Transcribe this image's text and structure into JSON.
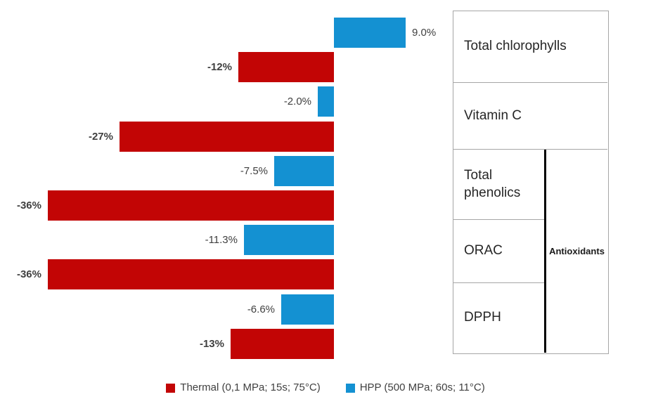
{
  "chart_data": {
    "type": "bar",
    "orientation": "horizontal",
    "title": "",
    "value_unit": "%",
    "gridlines": false,
    "value_axis_visible": false,
    "legend_position": "bottom",
    "categories": [
      "Total chlorophylls",
      "Vitamin C",
      "Total phenolics",
      "ORAC",
      "DPPH"
    ],
    "series": [
      {
        "name": "HPP (500 MPa; 60s; 11°C)",
        "short_name": "HPP",
        "color": "#1491d2",
        "values": [
          9.0,
          -2.0,
          -7.5,
          -11.3,
          -6.6
        ],
        "value_labels": [
          "9.0%",
          "-2.0%",
          "-7.5%",
          "-11.3%",
          "-6.6%"
        ],
        "label_bold": false
      },
      {
        "name": "Thermal (0,1 MPa; 15s; 75°C)",
        "short_name": "Thermal",
        "color": "#c20505",
        "values": [
          -12,
          -27,
          -36,
          -36,
          -13
        ],
        "value_labels": [
          "-12%",
          "-27%",
          "-36%",
          "-36%",
          "-13%"
        ],
        "label_bold": true
      }
    ],
    "bar_order_within_category": [
      "HPP",
      "Thermal"
    ],
    "legend": [
      {
        "label": "Thermal (0,1 MPa; 15s; 75°C)",
        "color": "#c20505"
      },
      {
        "label": "HPP (500 MPa; 60s; 11°C)",
        "color": "#1491d2"
      }
    ]
  },
  "side_table": {
    "rows": [
      "Total chlorophylls",
      "Vitamin C",
      "Total phenolics",
      "ORAC",
      "DPPH"
    ],
    "group_label": "Antioxidants",
    "group_rows": [
      "Total phenolics",
      "ORAC",
      "DPPH"
    ],
    "border_color": "#a6a6a6",
    "divider_color": "#000000"
  },
  "colors": {
    "thermal": "#c20505",
    "hpp": "#1491d2",
    "label_text": "#404040",
    "table_text": "#262626"
  }
}
